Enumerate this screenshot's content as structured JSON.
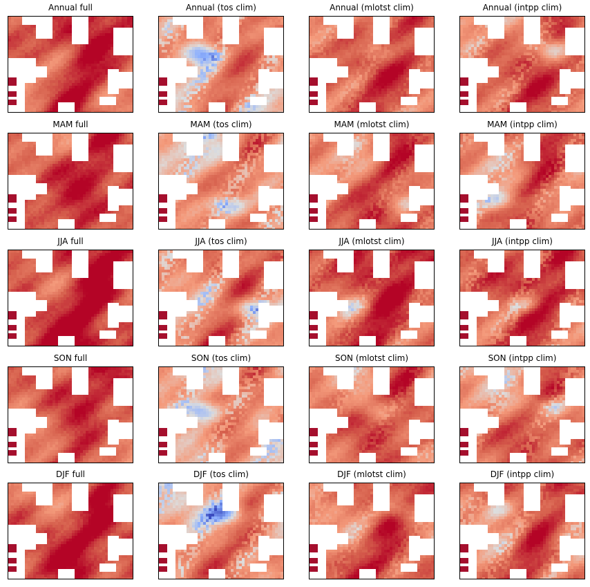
{
  "figure": {
    "panel_titles": [
      [
        "Annual full",
        "Annual (tos clim)",
        "Annual (mlotst clim)",
        "Annual (intpp clim)"
      ],
      [
        "MAM full",
        "MAM (tos clim)",
        "MAM (mlotst clim)",
        "MAM (intpp clim)"
      ],
      [
        "JJA full",
        "JJA (tos clim)",
        "JJA (mlotst clim)",
        "JJA (intpp clim)"
      ],
      [
        "SON full",
        "SON (tos clim)",
        "SON (mlotst clim)",
        "SON (intpp clim)"
      ],
      [
        "DJF full",
        "DJF (tos clim)",
        "DJF (mlotst clim)",
        "DJF (intpp clim)"
      ]
    ],
    "colormap": "coolwarm",
    "colormap_stops": [
      "#3b4cc0",
      "#8db0fe",
      "#dddddd",
      "#f49a7b",
      "#d6604d",
      "#b40426"
    ],
    "land_color": "#ffffff",
    "frame_color": "#000000"
  },
  "chart_data": {
    "type": "heatmap",
    "layout": "5x4 grid of map panels",
    "rows": [
      "Annual",
      "MAM",
      "JJA",
      "SON",
      "DJF"
    ],
    "columns": [
      "full",
      "tos clim",
      "mlotst clim",
      "intpp clim"
    ],
    "xlabel": "",
    "ylabel": "",
    "axes_ticks": false,
    "colorbar": false,
    "panel_character": [
      [
        "strong warm, dark red core",
        "warm with blue patch in center-left",
        "warm with light-blue streaks",
        "mixed warm with many light-blue patches"
      ],
      [
        "warm, dark red core",
        "light warm with blue band and blue edge",
        "warm with small blue streaks",
        "warm with light-blue streaks on right"
      ],
      [
        "very warm, dark red",
        "light warm with blue patch top-left",
        "very warm, dark red",
        "warm with light-blue patches"
      ],
      [
        "warm, medium red",
        "light warm with light-blue patches",
        "warm with light streaks",
        "warm with blue patch on right"
      ],
      [
        "warm, dark red band at bottom",
        "warm with blue edges",
        "warm with light-blue streaks",
        "warm with light-blue streaks"
      ]
    ]
  }
}
